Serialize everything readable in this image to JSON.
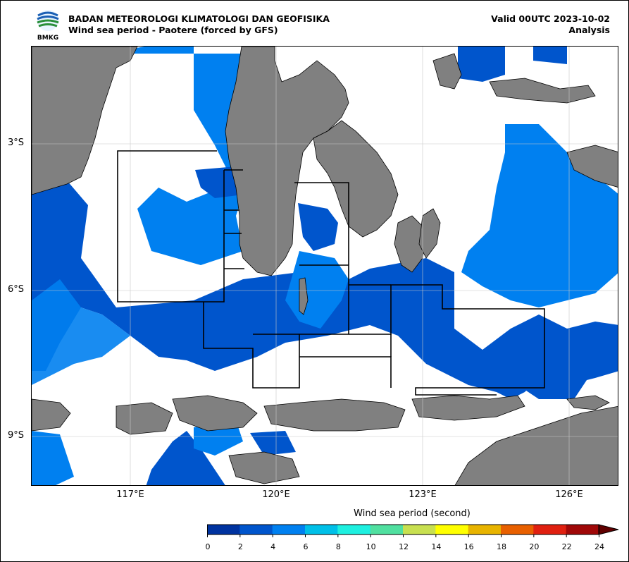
{
  "header": {
    "logo_text": "BMKG",
    "agency": "BADAN METEOROLOGI KLIMATOLOGI DAN GEOFISIKA",
    "product": "Wind sea period - Paotere (forced by GFS)",
    "valid": "Valid 00UTC 2023-10-02",
    "analysis": "Analysis"
  },
  "map": {
    "lon_range": [
      115.0,
      127.0
    ],
    "lat_range": [
      -10.2,
      -1.2
    ],
    "grid": true,
    "land_color": "#808080",
    "sea_none_color": "#ffffff",
    "lat_ticks": [
      {
        "value": -3,
        "label": "3°S"
      },
      {
        "value": -6,
        "label": "6°S"
      },
      {
        "value": -9,
        "label": "9°S"
      }
    ],
    "lon_ticks": [
      {
        "value": 117,
        "label": "117°E"
      },
      {
        "value": 120,
        "label": "120°E"
      },
      {
        "value": 123,
        "label": "123°E"
      },
      {
        "value": 126,
        "label": "126°E"
      }
    ]
  },
  "colorbar": {
    "title": "Wind sea period (second)",
    "orientation": "horizontal",
    "extend": "max",
    "ticks": [
      "0",
      "2",
      "4",
      "6",
      "8",
      "10",
      "12",
      "14",
      "16",
      "18",
      "20",
      "22",
      "24"
    ],
    "colors": [
      "#0033a0",
      "#0055cc",
      "#0080f0",
      "#00c0e8",
      "#1ef0e0",
      "#50e0a0",
      "#c8e050",
      "#ffff00",
      "#e8b400",
      "#e86000",
      "#e02010",
      "#a00808",
      "#600000"
    ]
  }
}
